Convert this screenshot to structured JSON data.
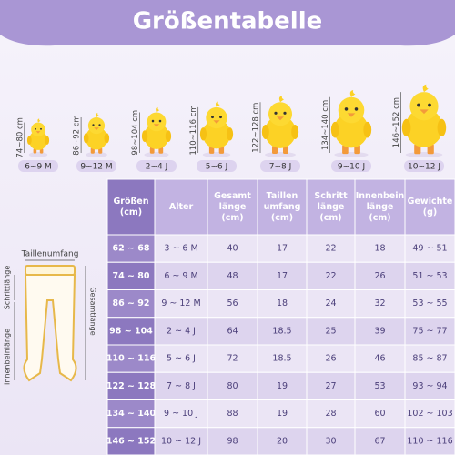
{
  "header": {
    "title": "Größentabelle"
  },
  "chicks": [
    {
      "height": "74~80 cm",
      "age": "6~9 M"
    },
    {
      "height": "86~92 cm",
      "age": "9~12 M"
    },
    {
      "height": "98~104 cm",
      "age": "2~4 J"
    },
    {
      "height": "110~116 cm",
      "age": "5~6 J"
    },
    {
      "height": "122~128 cm",
      "age": "7~8 J"
    },
    {
      "height": "134~140 cm",
      "age": "9~10 J"
    },
    {
      "height": "146~152 cm",
      "age": "10~12 J"
    }
  ],
  "diagram": {
    "waist": "Taillenumfang",
    "crotch": "Schrittlänge",
    "inseam": "Innenbeinlänge",
    "total": "Gesamtlänge"
  },
  "table": {
    "headers": [
      [
        "Größen",
        "(cm)"
      ],
      [
        "Alter"
      ],
      [
        "Gesamt",
        "länge",
        "(cm)"
      ],
      [
        "Taillen",
        "umfang",
        "(cm)"
      ],
      [
        "Schritt",
        "länge",
        "(cm)"
      ],
      [
        "Innenbein",
        "länge",
        "(cm)"
      ],
      [
        "Gewichte",
        "(g)"
      ]
    ],
    "rows": [
      [
        "62 ~ 68",
        "3 ~ 6 M",
        "40",
        "17",
        "22",
        "18",
        "49 ~ 51"
      ],
      [
        "74 ~ 80",
        "6 ~ 9 M",
        "48",
        "17",
        "22",
        "26",
        "51 ~ 53"
      ],
      [
        "86 ~ 92",
        "9 ~ 12 M",
        "56",
        "18",
        "24",
        "32",
        "53 ~ 55"
      ],
      [
        "98 ~ 104",
        "2 ~ 4 J",
        "64",
        "18.5",
        "25",
        "39",
        "75 ~ 77"
      ],
      [
        "110 ~ 116",
        "5 ~ 6 J",
        "72",
        "18.5",
        "26",
        "46",
        "85 ~ 87"
      ],
      [
        "122 ~ 128",
        "7 ~ 8 J",
        "80",
        "19",
        "27",
        "53",
        "93 ~ 94"
      ],
      [
        "134 ~ 140",
        "9 ~ 10 J",
        "88",
        "19",
        "28",
        "60",
        "102 ~ 103"
      ],
      [
        "146 ~ 152",
        "10 ~ 12 J",
        "98",
        "20",
        "30",
        "67",
        "110 ~ 116"
      ]
    ]
  }
}
